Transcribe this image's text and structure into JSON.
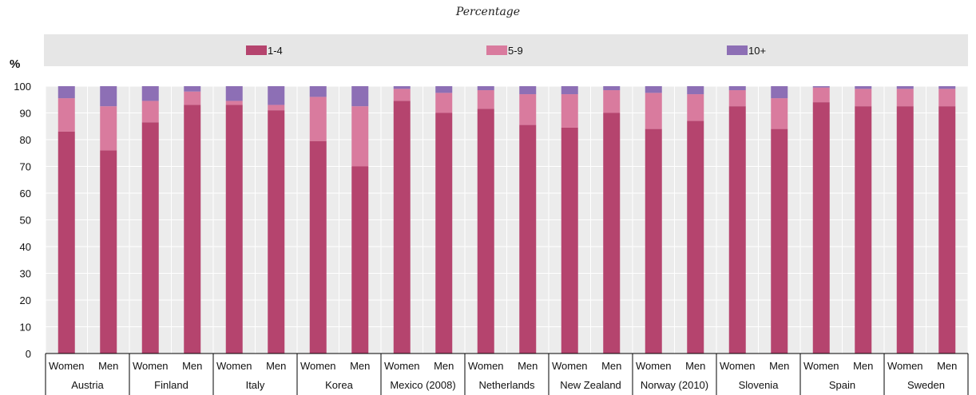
{
  "chart_data": {
    "type": "bar",
    "stacked": true,
    "subtitle": "Percentage",
    "ylabel": "%",
    "ylim": [
      0,
      100
    ],
    "yticks": [
      0,
      10,
      20,
      30,
      40,
      50,
      60,
      70,
      80,
      90,
      100
    ],
    "grid": true,
    "legend_position": "top",
    "countries": [
      "Austria",
      "Finland",
      "Italy",
      "Korea",
      "Mexico (2008)",
      "Netherlands",
      "New Zealand",
      "Norway (2010)",
      "Slovenia",
      "Spain",
      "Sweden"
    ],
    "sub_categories": [
      "Women",
      "Men"
    ],
    "series": [
      {
        "name": "1-4",
        "color": "#b5446e",
        "values": [
          83,
          76,
          86.5,
          93,
          93,
          91,
          79.5,
          70,
          94.5,
          90,
          91.5,
          85.5,
          84.5,
          90,
          84,
          87,
          92.5,
          84,
          94,
          92.5,
          92.5,
          92.5
        ]
      },
      {
        "name": "5-9",
        "color": "#d97b9e",
        "values": [
          12.5,
          16.5,
          8,
          5,
          1.5,
          2,
          16.5,
          22.5,
          4.5,
          7.5,
          7,
          11.5,
          12.5,
          8.5,
          13.5,
          10,
          6,
          11.5,
          5.5,
          6.5,
          6.5,
          6.5
        ]
      },
      {
        "name": "10+",
        "color": "#8d6fb5",
        "values": [
          4.5,
          7.5,
          5.5,
          2,
          5.5,
          7,
          4,
          7.5,
          1,
          2.5,
          1.5,
          3,
          3,
          1.5,
          2.5,
          3,
          1.5,
          4.5,
          0.5,
          1,
          1,
          1
        ]
      }
    ]
  },
  "colors": {
    "plot_background": "#ececec",
    "legend_background": "#e6e6e6",
    "grid": "#ffffff",
    "axis": "#000000"
  }
}
